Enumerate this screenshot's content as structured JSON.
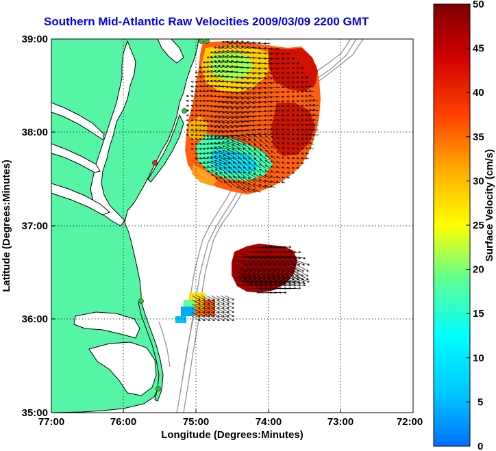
{
  "title": "Southern Mid-Atlantic Raw Velocities 2009/03/09 2200 GMT",
  "x_axis": {
    "label": "Longitude (Degrees:Minutes)",
    "ticks": [
      "77:00",
      "76:00",
      "75:00",
      "74:00",
      "73:00",
      "72:00"
    ]
  },
  "y_axis": {
    "label": "Latitude (Degrees:Minutes)",
    "ticks": [
      "39:00",
      "38:00",
      "37:00",
      "36:00",
      "35:00"
    ]
  },
  "colorbar": {
    "label": "Surface Velocity (cm/s)",
    "ticks": [
      "50",
      "45",
      "40",
      "35",
      "30",
      "25",
      "20",
      "15",
      "10",
      "5",
      "0"
    ],
    "range": [
      0,
      50
    ]
  },
  "colors": {
    "land": "#55f5a5",
    "water": "#ffffff",
    "coast": "#000000",
    "bathymetry": "#999999",
    "title": "#0000ee",
    "station_active": "#22cc22",
    "station_inactive": "#ee2222"
  },
  "stations": [
    {
      "type": "active"
    },
    {
      "type": "active"
    },
    {
      "type": "inactive"
    },
    {
      "type": "active"
    },
    {
      "type": "active"
    }
  ]
}
